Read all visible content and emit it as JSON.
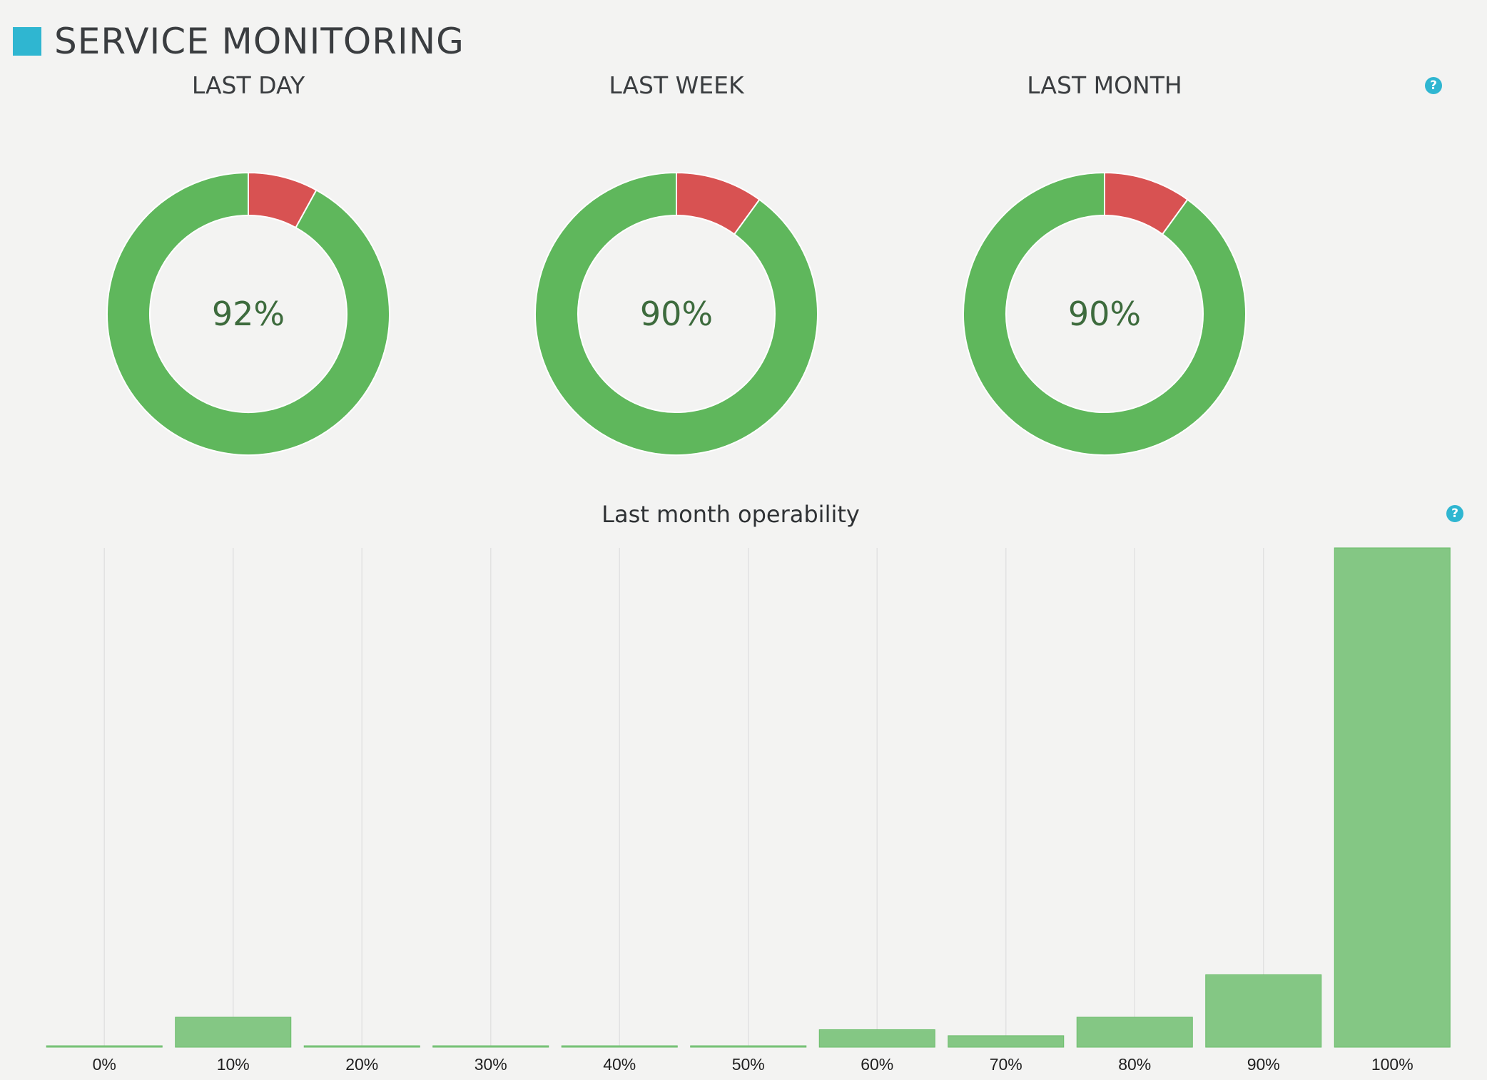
{
  "page": {
    "title": "SERVICE MONITORING",
    "accent_color": "#2fb6d1",
    "help_icon": "question-circle-icon",
    "help_glyph": "?"
  },
  "donuts": [
    {
      "label": "LAST DAY",
      "percent_text": "92%",
      "up": 92,
      "down": 8
    },
    {
      "label": "LAST WEEK",
      "percent_text": "90%",
      "up": 90,
      "down": 10
    },
    {
      "label": "LAST MONTH",
      "percent_text": "90%",
      "up": 90,
      "down": 10
    }
  ],
  "colors": {
    "up": "#5fb75c",
    "down": "#d85252",
    "bar": "#84c784",
    "bar_stroke": "#6bbd6b",
    "grid": "#e2e2e2"
  },
  "chart_data": {
    "type": "bar",
    "title": "Last month operability",
    "categories": [
      "0%",
      "10%",
      "20%",
      "30%",
      "40%",
      "50%",
      "60%",
      "70%",
      "80%",
      "90%",
      "100%"
    ],
    "values": [
      0,
      6,
      0,
      0,
      0,
      0,
      3.5,
      2.3,
      6,
      14.5,
      100
    ],
    "ylim": [
      0,
      100
    ],
    "grid": true,
    "legend": "none"
  }
}
